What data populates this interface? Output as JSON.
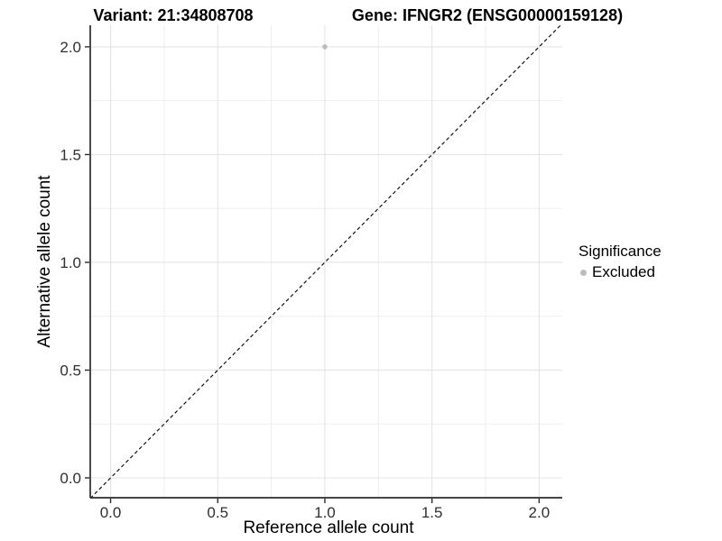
{
  "chart_data": {
    "type": "scatter",
    "title_left": "Variant: 21:34808708",
    "title_right": "Gene: IFNGR2 (ENSG00000159128)",
    "xlabel": "Reference allele count",
    "ylabel": "Alternative allele count",
    "xlim": [
      -0.095,
      2.108
    ],
    "ylim": [
      -0.092,
      2.1
    ],
    "xticks": {
      "values": [
        0.0,
        0.5,
        1.0,
        1.5,
        2.0
      ],
      "labels": [
        "0.0",
        "0.5",
        "1.0",
        "1.5",
        "2.0"
      ]
    },
    "yticks": {
      "values": [
        0.0,
        0.5,
        1.0,
        1.5,
        2.0
      ],
      "labels": [
        "0.0",
        "0.5",
        "1.0",
        "1.5",
        "2.0"
      ]
    },
    "xticks_minor": [
      0.25,
      0.75,
      1.25,
      1.75
    ],
    "yticks_minor": [
      0.25,
      0.75,
      1.25,
      1.75
    ],
    "grid": {
      "major_color": "#e4e4e4",
      "minor_color": "#efefef",
      "major_width": 1.1,
      "minor_width": 1
    },
    "identity_line": {
      "from": [
        -0.095,
        -0.095
      ],
      "to": [
        2.102,
        2.102
      ],
      "dashed": true,
      "color": "#111111"
    },
    "series": [
      {
        "name": "Excluded",
        "color": "#bcbcbc",
        "points": [
          {
            "x": 1.0,
            "y": 2.0
          }
        ]
      }
    ],
    "legend": {
      "title": "Significance",
      "position": "right",
      "entries": [
        {
          "label": "Excluded",
          "color": "#bcbcbc",
          "marker": "circle"
        }
      ]
    },
    "axis_color": "#2b2b2b",
    "tick_label_color": "#303030"
  }
}
